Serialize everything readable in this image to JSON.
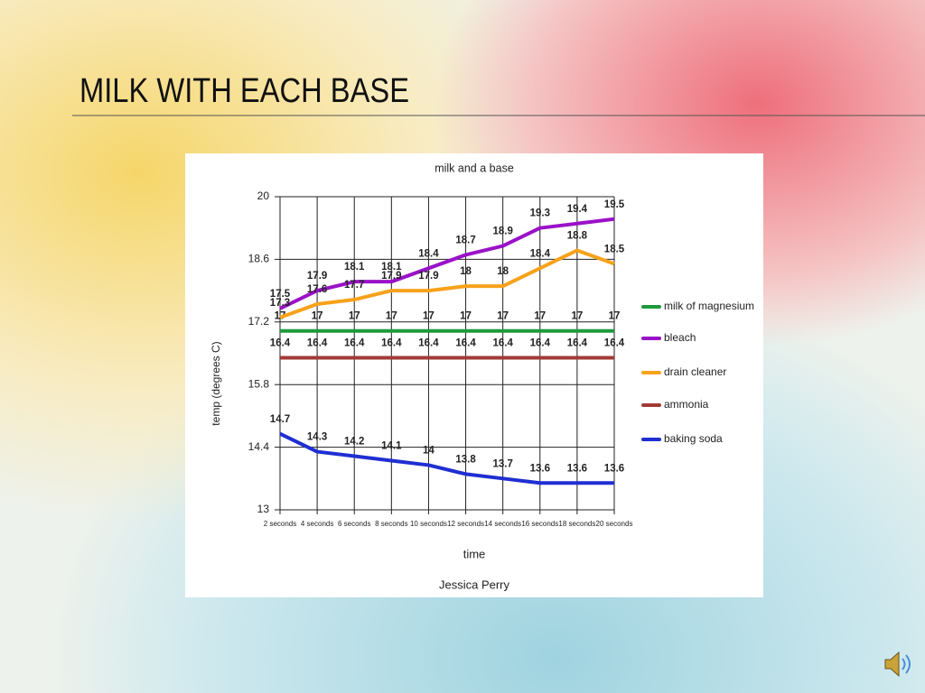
{
  "slide_title": "MILK WITH EACH BASE",
  "chart_data": {
    "type": "line",
    "title": "milk and a base",
    "subtitle": "Jessica Perry",
    "x_label": "time",
    "y_label": "temp (degrees C)",
    "categories": [
      "2 seconds",
      "4 seconds",
      "6 seconds",
      "8 seconds",
      "10 seconds",
      "12 seconds",
      "14 seconds",
      "16 seconds",
      "18 seconds",
      "20 seconds"
    ],
    "ylim": [
      13,
      20
    ],
    "yticks": [
      13,
      14.4,
      15.8,
      17.2,
      18.6,
      20
    ],
    "grid": true,
    "legend": "right",
    "series": [
      {
        "name": "milk of magnesium",
        "color": "#1f9a3c",
        "values": [
          17,
          17,
          17,
          17,
          17,
          17,
          17,
          17,
          17,
          17
        ]
      },
      {
        "name": "bleach",
        "color": "#9a12c8",
        "values": [
          17.5,
          17.9,
          18.1,
          18.1,
          18.4,
          18.7,
          18.9,
          19.3,
          19.4,
          19.5
        ]
      },
      {
        "name": "drain cleaner",
        "color": "#f7a21b",
        "values": [
          17.3,
          17.6,
          17.7,
          17.9,
          17.9,
          18,
          18,
          18.4,
          18.8,
          18.5
        ]
      },
      {
        "name": "ammonia",
        "color": "#a33a36",
        "values": [
          16.4,
          16.4,
          16.4,
          16.4,
          16.4,
          16.4,
          16.4,
          16.4,
          16.4,
          16.4
        ]
      },
      {
        "name": "baking soda",
        "color": "#1f2fd2",
        "values": [
          14.7,
          14.3,
          14.2,
          14.1,
          14,
          13.8,
          13.7,
          13.6,
          13.6,
          13.6
        ]
      }
    ]
  }
}
